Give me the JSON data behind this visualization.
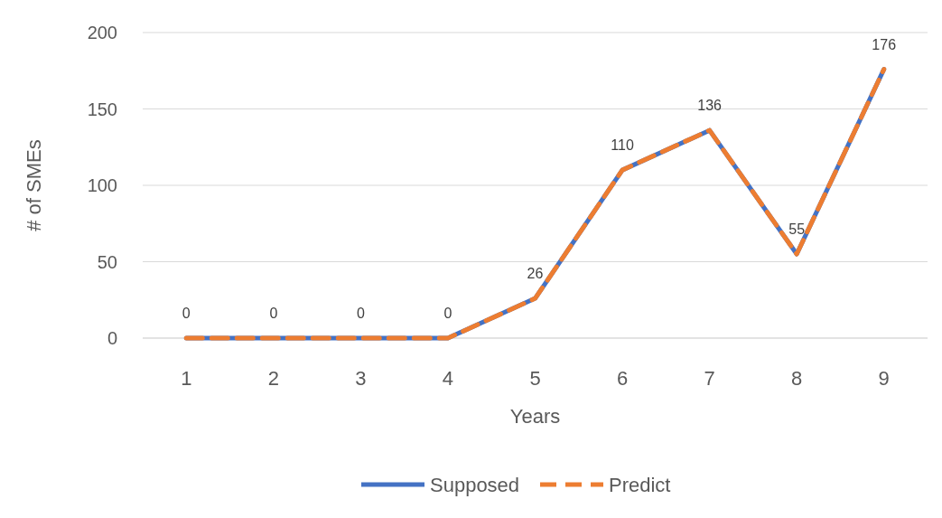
{
  "chart_data": {
    "type": "line",
    "xlabel": "Years",
    "ylabel": "# of SMEs",
    "categories": [
      "1",
      "2",
      "3",
      "4",
      "5",
      "6",
      "7",
      "8",
      "9"
    ],
    "series": [
      {
        "name": "Supposed",
        "color": "#4472c4",
        "line_style": "solid",
        "values": [
          0,
          0,
          0,
          0,
          26,
          110,
          136,
          55,
          176
        ],
        "value_labels": [
          "0",
          "0",
          "0",
          "0",
          "26",
          "110",
          "136",
          "55",
          "176"
        ]
      },
      {
        "name": "Predict",
        "color": "#ed7d31",
        "line_style": "dashed",
        "values": [
          0,
          0,
          0,
          0,
          26,
          110,
          136,
          55,
          176
        ]
      }
    ],
    "ylim": [
      0,
      200
    ],
    "yticks": [
      0,
      50,
      100,
      150,
      200
    ],
    "grid": "y",
    "legend": "bottom",
    "marker": "none"
  }
}
